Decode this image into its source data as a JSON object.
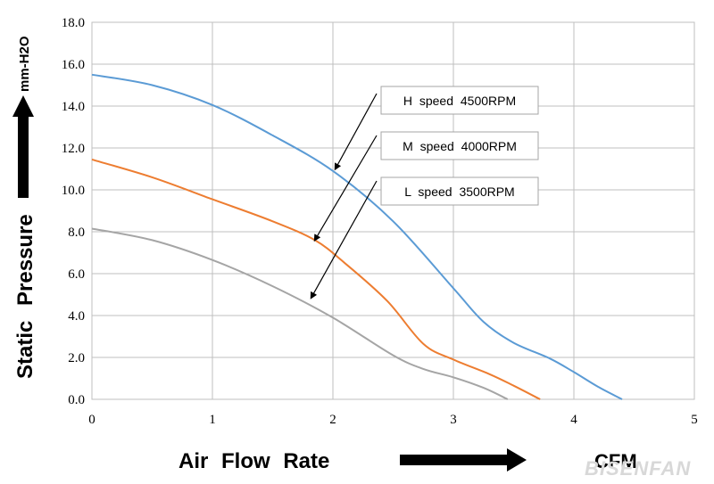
{
  "chart_data": {
    "type": "line",
    "xlabel": "Air Flow Rate",
    "xunit": "CFM",
    "ylabel": "Static Pressure",
    "yunit": "mm-H2O",
    "xlim": [
      0,
      5
    ],
    "ylim": [
      0,
      18
    ],
    "xticks": [
      "0",
      "1",
      "2",
      "3",
      "4",
      "5"
    ],
    "yticks": [
      "0.0",
      "2.0",
      "4.0",
      "6.0",
      "8.0",
      "10.0",
      "12.0",
      "14.0",
      "16.0",
      "18.0"
    ],
    "grid": true,
    "series": [
      {
        "name": "H speed 4500RPM",
        "color": "#5b9bd5",
        "points": [
          [
            0,
            15.5
          ],
          [
            0.5,
            15.0
          ],
          [
            1.0,
            14.05
          ],
          [
            1.5,
            12.6
          ],
          [
            2.0,
            10.9
          ],
          [
            2.5,
            8.5
          ],
          [
            3.0,
            5.3
          ],
          [
            3.25,
            3.7
          ],
          [
            3.5,
            2.7
          ],
          [
            3.8,
            1.95
          ],
          [
            4.0,
            1.3
          ],
          [
            4.2,
            0.6
          ],
          [
            4.4,
            0.0
          ]
        ]
      },
      {
        "name": "M speed 4000RPM",
        "color": "#ed7d31",
        "points": [
          [
            0,
            11.45
          ],
          [
            0.5,
            10.6
          ],
          [
            1.0,
            9.55
          ],
          [
            1.5,
            8.5
          ],
          [
            1.85,
            7.6
          ],
          [
            2.1,
            6.5
          ],
          [
            2.45,
            4.7
          ],
          [
            2.75,
            2.65
          ],
          [
            3.0,
            1.9
          ],
          [
            3.3,
            1.2
          ],
          [
            3.5,
            0.65
          ],
          [
            3.72,
            0.0
          ]
        ]
      },
      {
        "name": "L speed 3500RPM",
        "color": "#a5a5a5",
        "points": [
          [
            0,
            8.15
          ],
          [
            0.5,
            7.6
          ],
          [
            1.0,
            6.65
          ],
          [
            1.5,
            5.4
          ],
          [
            2.0,
            3.9
          ],
          [
            2.5,
            2.1
          ],
          [
            2.75,
            1.45
          ],
          [
            3.0,
            1.05
          ],
          [
            3.25,
            0.55
          ],
          [
            3.45,
            0.0
          ]
        ]
      }
    ],
    "annotations": [
      {
        "label": "H speed 4500RPM",
        "target": [
          2.02,
          11.0
        ]
      },
      {
        "label": "M speed 4000RPM",
        "target": [
          1.85,
          7.6
        ]
      },
      {
        "label": "L speed 3500RPM",
        "target": [
          1.82,
          4.85
        ]
      }
    ]
  },
  "watermark": "BISENFAN"
}
